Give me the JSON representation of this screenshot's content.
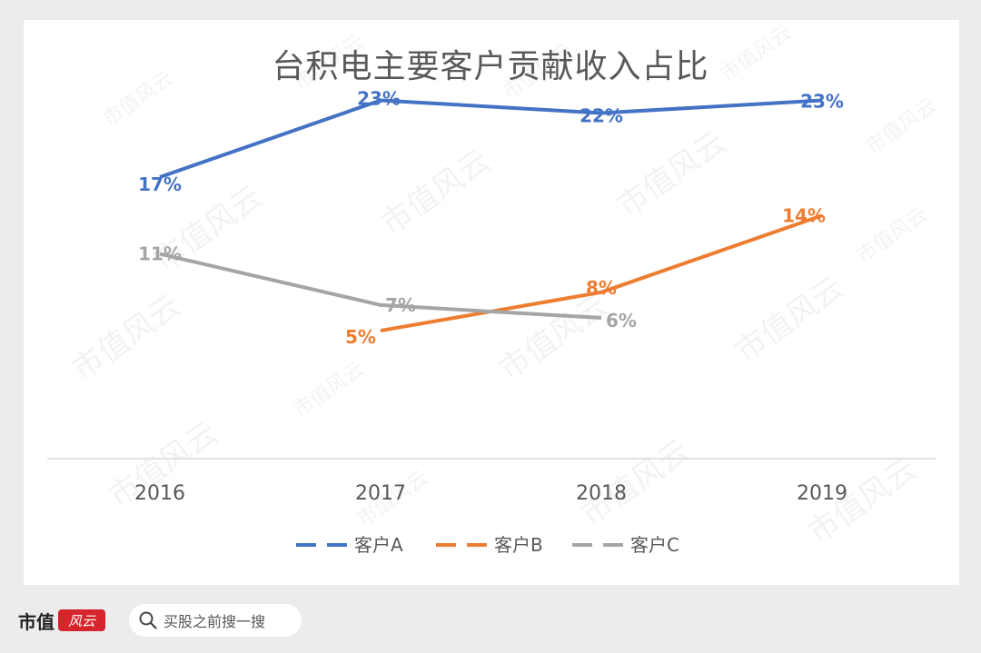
{
  "footer": {
    "brand": "市值",
    "brand_script": "风云",
    "search_placeholder": "买股之前搜一搜"
  },
  "watermark": "市值风云",
  "colors": {
    "A": "#4472c4",
    "B": "#ed7d31",
    "C": "#a5a5a5"
  },
  "chart_data": {
    "type": "line",
    "title": "台积电主要客户贡献收入占比",
    "categories": [
      "2016",
      "2017",
      "2018",
      "2019"
    ],
    "ylim": [
      -5,
      28
    ],
    "grid": false,
    "legend_position": "bottom",
    "series": [
      {
        "name": "客户A",
        "key": "A",
        "values": [
          17,
          23,
          22,
          23
        ],
        "labels": [
          "17%",
          "23%",
          "22%",
          "23%"
        ]
      },
      {
        "name": "客户B",
        "key": "B",
        "values": [
          null,
          5,
          8,
          14
        ],
        "labels": [
          "",
          "5%",
          "8%",
          "14%"
        ]
      },
      {
        "name": "客户C",
        "key": "C",
        "values": [
          11,
          7,
          6,
          null
        ],
        "labels": [
          "11%",
          "7%",
          "6%",
          ""
        ]
      }
    ]
  }
}
